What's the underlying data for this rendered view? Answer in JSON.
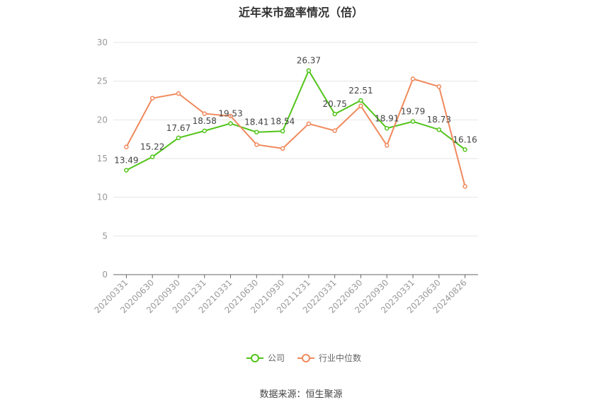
{
  "chart_data": {
    "type": "line",
    "title": "近年来市盈率情况（倍）",
    "categories": [
      "20200331",
      "20200630",
      "20200930",
      "20201231",
      "20210331",
      "20210630",
      "20210930",
      "20211231",
      "20220331",
      "20220630",
      "20220930",
      "20230331",
      "20230630",
      "20240826"
    ],
    "series": [
      {
        "name": "公司",
        "color": "#52c41a",
        "values": [
          13.49,
          15.22,
          17.67,
          18.58,
          19.53,
          18.41,
          18.54,
          26.37,
          20.75,
          22.51,
          18.91,
          19.79,
          18.73,
          16.16
        ],
        "labels": true
      },
      {
        "name": "行业中位数",
        "color": "#f08a5d",
        "values": [
          16.5,
          22.8,
          23.4,
          20.8,
          20.5,
          16.8,
          16.3,
          19.5,
          18.6,
          21.8,
          16.7,
          25.3,
          24.3,
          11.4
        ],
        "labels": false
      }
    ],
    "ylim": [
      0,
      30
    ],
    "yticks": [
      0,
      5,
      10,
      15,
      20,
      25,
      30
    ],
    "grid": true,
    "legend_position": "bottom-center"
  },
  "source": "数据来源：恒生聚源"
}
